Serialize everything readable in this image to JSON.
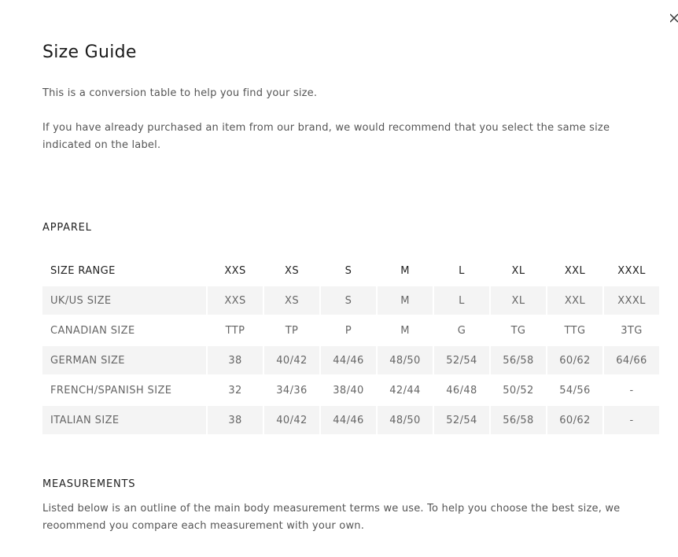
{
  "title": "Size Guide",
  "intro": [
    "This is a conversion table to help you find your size.",
    "If you have already purchased an item from our brand, we would recommend that you select the same size indicated on the label."
  ],
  "apparel": {
    "heading": "APPAREL",
    "table": {
      "header": [
        "SIZE RANGE",
        "XXS",
        "XS",
        "S",
        "M",
        "L",
        "XL",
        "XXL",
        "XXXL"
      ],
      "rows": [
        [
          "UK/US SIZE",
          "XXS",
          "XS",
          "S",
          "M",
          "L",
          "XL",
          "XXL",
          "XXXL"
        ],
        [
          "CANADIAN SIZE",
          "TTP",
          "TP",
          "P",
          "M",
          "G",
          "TG",
          "TTG",
          "3TG"
        ],
        [
          "GERMAN SIZE",
          "38",
          "40/42",
          "44/46",
          "48/50",
          "52/54",
          "56/58",
          "60/62",
          "64/66"
        ],
        [
          "FRENCH/SPANISH SIZE",
          "32",
          "34/36",
          "38/40",
          "42/44",
          "46/48",
          "50/52",
          "54/56",
          "-"
        ],
        [
          "ITALIAN SIZE",
          "38",
          "40/42",
          "44/46",
          "48/50",
          "52/54",
          "56/58",
          "60/62",
          "-"
        ]
      ]
    }
  },
  "measurements": {
    "heading": "MEASUREMENTS",
    "text": "Listed below is an outline of the main body measurement terms we use. To help you choose the best size, we reoommend you compare each measurement with your own."
  }
}
